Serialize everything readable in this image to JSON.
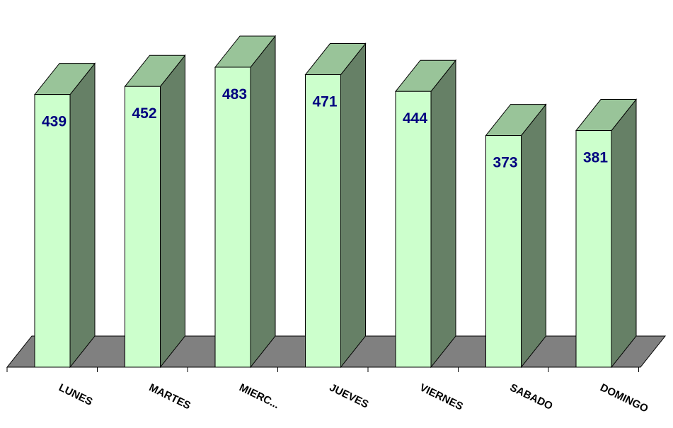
{
  "chart_data": {
    "type": "bar",
    "categories": [
      "LUNES",
      "MARTES",
      "MIERC...",
      "JUEVES",
      "VIERNES",
      "SABADO",
      "DOMINGO"
    ],
    "values": [
      439,
      452,
      483,
      471,
      444,
      373,
      381
    ],
    "ylim": [
      0,
      520
    ],
    "grid": false,
    "legend": "none",
    "colors": {
      "bar_front": "#ccffcc",
      "bar_top": "#99c499",
      "bar_side": "#668066",
      "floor": "#808080",
      "outline": "#000000",
      "data_label": "#000080"
    }
  }
}
